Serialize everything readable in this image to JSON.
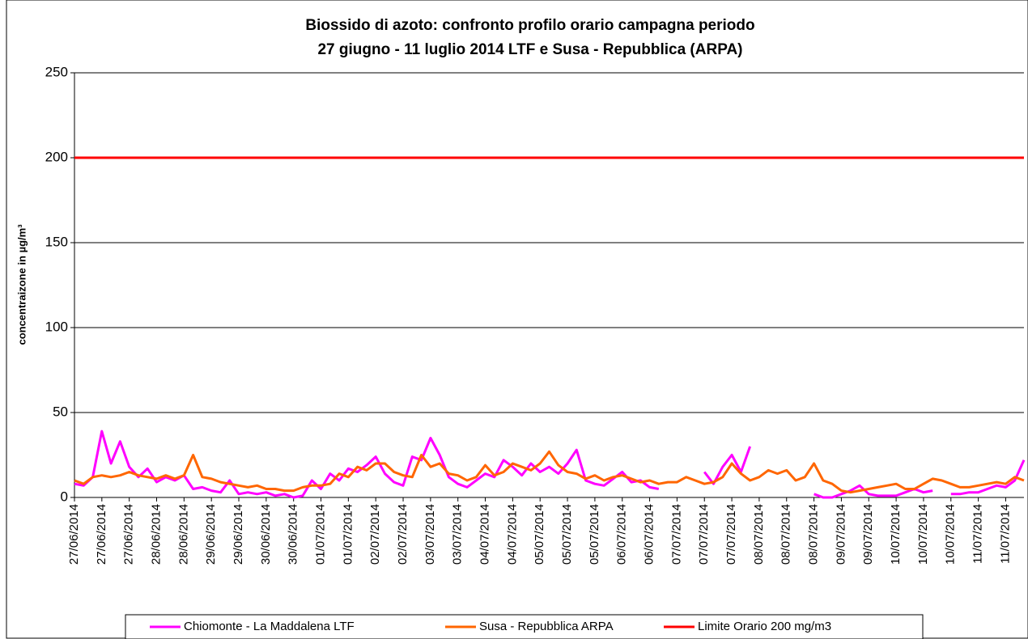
{
  "chart_data": {
    "type": "line",
    "title": [
      "Biossido di azoto: confronto profilo orario campagna periodo",
      "27 giugno - 11 luglio 2014  LTF e Susa - Repubblica (ARPA)"
    ],
    "y_label": "concentraizone in µg/m³",
    "categories": [
      "27/06/2014",
      null,
      null,
      "27/06/2014",
      null,
      null,
      "27/06/2014",
      null,
      null,
      "28/06/2014",
      null,
      null,
      "28/06/2014",
      null,
      null,
      "29/06/2014",
      null,
      null,
      "29/06/2014",
      null,
      null,
      "30/06/2014",
      null,
      null,
      "30/06/2014",
      null,
      null,
      "01/07/2014",
      null,
      null,
      "01/07/2014",
      null,
      null,
      "02/07/2014",
      null,
      null,
      "02/07/2014",
      null,
      null,
      "03/07/2014",
      null,
      null,
      "03/07/2014",
      null,
      null,
      "04/07/2014",
      null,
      null,
      "04/07/2014",
      null,
      null,
      "05/07/2014",
      null,
      null,
      "05/07/2014",
      null,
      null,
      "05/07/2014",
      null,
      null,
      "06/07/2014",
      null,
      null,
      "06/07/2014",
      null,
      null,
      "07/07/2014",
      null,
      null,
      "07/07/2014",
      null,
      null,
      "07/07/2014",
      null,
      null,
      "08/07/2014",
      null,
      null,
      "08/07/2014",
      null,
      null,
      "08/07/2014",
      null,
      null,
      "09/07/2014",
      null,
      null,
      "09/07/2014",
      null,
      null,
      "10/07/2014",
      null,
      null,
      "10/07/2014",
      null,
      null,
      "10/07/2014",
      null,
      null,
      "11/07/2014",
      null,
      null,
      "11/07/2014",
      null,
      null
    ],
    "series": [
      {
        "name": "Chiomonte - La Maddalena LTF",
        "color": "#ff00ff",
        "values": [
          8,
          7,
          12,
          39,
          20,
          33,
          18,
          12,
          17,
          9,
          12,
          10,
          13,
          5,
          6,
          4,
          3,
          10,
          2,
          3,
          2,
          3,
          1,
          2,
          0,
          1,
          10,
          5,
          14,
          10,
          17,
          15,
          19,
          24,
          14,
          9,
          7,
          24,
          22,
          35,
          25,
          12,
          8,
          6,
          10,
          14,
          12,
          22,
          18,
          13,
          20,
          15,
          18,
          14,
          20,
          28,
          10,
          8,
          7,
          11,
          15,
          9,
          10,
          6,
          5,
          null,
          null,
          null,
          null,
          15,
          8,
          18,
          25,
          15,
          30,
          null,
          null,
          null,
          null,
          null,
          null,
          2,
          0,
          0,
          2,
          4,
          7,
          2,
          1,
          1,
          1,
          3,
          5,
          3,
          4,
          null,
          2,
          2,
          3,
          3,
          5,
          7,
          6,
          10,
          22
        ]
      },
      {
        "name": "Susa - Repubblica ARPA",
        "color": "#ff6600",
        "values": [
          10,
          8,
          12,
          13,
          12,
          13,
          15,
          13,
          12,
          11,
          13,
          11,
          13,
          25,
          12,
          11,
          9,
          8,
          7,
          6,
          7,
          5,
          5,
          4,
          4,
          6,
          7,
          7,
          8,
          14,
          12,
          18,
          16,
          20,
          20,
          15,
          13,
          12,
          25,
          18,
          20,
          14,
          13,
          10,
          12,
          19,
          13,
          15,
          20,
          18,
          16,
          20,
          27,
          19,
          15,
          14,
          11,
          13,
          10,
          12,
          13,
          11,
          9,
          10,
          8,
          9,
          9,
          12,
          10,
          8,
          9,
          12,
          20,
          14,
          10,
          12,
          16,
          14,
          16,
          10,
          12,
          20,
          10,
          8,
          4,
          3,
          4,
          5,
          6,
          7,
          8,
          5,
          5,
          8,
          11,
          10,
          8,
          6,
          6,
          7,
          8,
          9,
          8,
          12,
          10
        ]
      }
    ],
    "limit": {
      "name": "Limite Orario 200 mg/m3",
      "value": 200,
      "color": "#ff0000"
    },
    "ylim": [
      0,
      250
    ],
    "yticks": [
      0,
      50,
      100,
      150,
      200,
      250
    ],
    "grid": true
  }
}
